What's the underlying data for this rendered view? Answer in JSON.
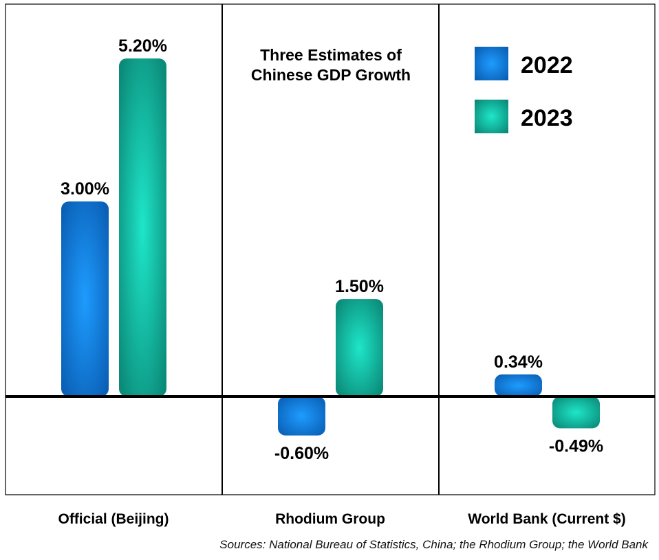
{
  "chart_data": {
    "type": "bar",
    "title": "Three Estimates of Chinese GDP Growth",
    "categories": [
      "Official (Beijing)",
      "Rhodium Group",
      "World Bank (Current $)"
    ],
    "series": [
      {
        "name": "2022",
        "values": [
          3.0,
          -0.6,
          0.34
        ],
        "labels": [
          "3.00%",
          "-0.60%",
          "0.34%"
        ],
        "color": "#1a8cf0"
      },
      {
        "name": "2023",
        "values": [
          5.2,
          1.5,
          -0.49
        ],
        "labels": [
          "5.20%",
          "1.50%",
          "-0.49%"
        ],
        "color": "#17c9b3"
      }
    ],
    "ylim": [
      -1.5,
      6.0
    ],
    "grid": false,
    "legend": "top-right"
  },
  "source": "Sources: National Bureau of Statistics, China; the Rhodium Group; the World Bank"
}
